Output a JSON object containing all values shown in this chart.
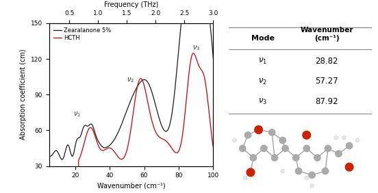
{
  "xlim": [
    5,
    100
  ],
  "ylim": [
    30,
    150
  ],
  "xlabel": "Wavenumber (cm⁻¹)",
  "ylabel": "Absorption coefficient (cm)",
  "top_xlabel": "Frequency (THz)",
  "top_xticks": [
    0.5,
    1.0,
    1.5,
    2.0,
    2.5,
    3.0
  ],
  "bottom_xticks": [
    20,
    40,
    60,
    80,
    100
  ],
  "yticks": [
    30,
    60,
    90,
    120,
    150
  ],
  "legend_labels": [
    "Zearalanone 5%",
    "HCTH"
  ],
  "legend_colors": [
    "#1a1a1a",
    "#cc0000"
  ],
  "table_wavenumbers": [
    "28.82",
    "57.27",
    "87.92"
  ],
  "table_header_mode": "Mode",
  "table_header_wn": "Wavenumber\n(cm⁻¹)"
}
